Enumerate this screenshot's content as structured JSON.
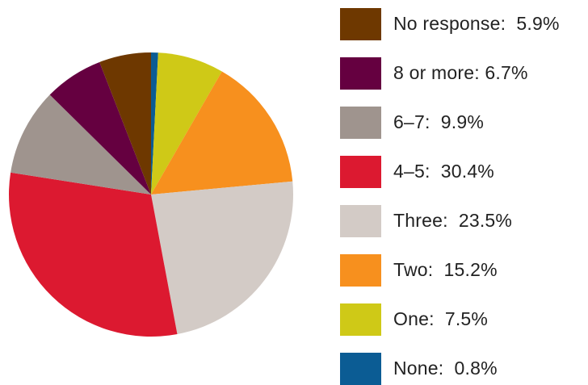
{
  "chart_data": {
    "type": "pie",
    "start_angle_deg": 0,
    "direction": "clockwise",
    "slices": [
      {
        "label": "None:  0.8%",
        "value": 0.8,
        "color": "#0b5c94"
      },
      {
        "label": "One:  7.5%",
        "value": 7.5,
        "color": "#cfc917"
      },
      {
        "label": "Two:  15.2%",
        "value": 15.2,
        "color": "#f7901e"
      },
      {
        "label": "Three:  23.5%",
        "value": 23.5,
        "color": "#d3cbc6"
      },
      {
        "label": "4–5:  30.4%",
        "value": 30.4,
        "color": "#dc1930"
      },
      {
        "label": "6–7:  9.9%",
        "value": 9.9,
        "color": "#9f948e"
      },
      {
        "label": "8 or more: 6.7%",
        "value": 6.7,
        "color": "#650040"
      },
      {
        "label": "No response:  5.9%",
        "value": 5.9,
        "color": "#6e3800"
      }
    ],
    "legend_order": [
      7,
      6,
      5,
      4,
      3,
      2,
      1,
      0
    ],
    "legend_position": "right"
  }
}
